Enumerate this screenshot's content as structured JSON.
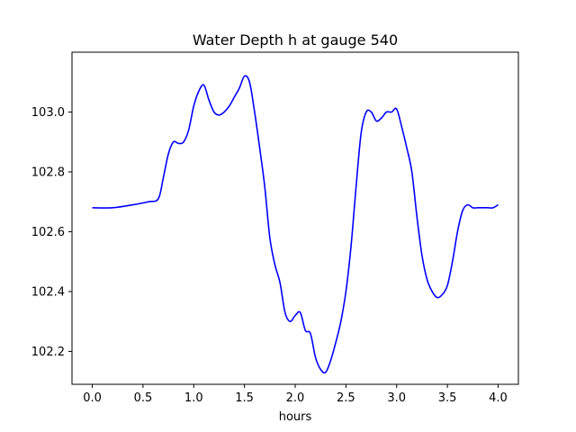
{
  "chart_data": {
    "type": "line",
    "title": "Water Depth h at gauge 540",
    "xlabel": "hours",
    "ylabel": "",
    "xlim": [
      -0.2,
      4.2
    ],
    "ylim": [
      102.09,
      103.2
    ],
    "xticks": [
      0.0,
      0.5,
      1.0,
      1.5,
      2.0,
      2.5,
      3.0,
      3.5,
      4.0
    ],
    "xtick_labels": [
      "0.0",
      "0.5",
      "1.0",
      "1.5",
      "2.0",
      "2.5",
      "3.0",
      "3.5",
      "4.0"
    ],
    "yticks": [
      102.2,
      102.4,
      102.6,
      102.8,
      103.0
    ],
    "ytick_labels": [
      "102.2",
      "102.4",
      "102.6",
      "102.8",
      "103.0"
    ],
    "grid": false,
    "legend": "none",
    "series": [
      {
        "color": "#0000ff",
        "x": [
          0.0,
          0.2,
          0.4,
          0.55,
          0.65,
          0.7,
          0.75,
          0.8,
          0.85,
          0.9,
          0.95,
          1.0,
          1.05,
          1.1,
          1.15,
          1.2,
          1.25,
          1.3,
          1.35,
          1.4,
          1.45,
          1.5,
          1.55,
          1.6,
          1.65,
          1.7,
          1.75,
          1.8,
          1.85,
          1.9,
          1.95,
          2.0,
          2.05,
          2.1,
          2.15,
          2.2,
          2.25,
          2.3,
          2.35,
          2.4,
          2.45,
          2.5,
          2.55,
          2.6,
          2.65,
          2.7,
          2.75,
          2.8,
          2.85,
          2.9,
          2.95,
          3.0,
          3.05,
          3.1,
          3.15,
          3.2,
          3.25,
          3.3,
          3.35,
          3.4,
          3.45,
          3.5,
          3.55,
          3.6,
          3.65,
          3.7,
          3.75,
          3.8,
          3.85,
          3.9,
          3.95,
          4.0
        ],
        "values": [
          102.68,
          102.68,
          102.69,
          102.7,
          102.71,
          102.78,
          102.86,
          102.9,
          102.895,
          102.9,
          102.94,
          103.02,
          103.07,
          103.09,
          103.04,
          103.0,
          102.99,
          103.0,
          103.02,
          103.05,
          103.08,
          103.12,
          103.1,
          103.0,
          102.88,
          102.75,
          102.58,
          102.49,
          102.43,
          102.33,
          102.3,
          102.32,
          102.33,
          102.27,
          102.26,
          102.18,
          102.14,
          102.13,
          102.17,
          102.23,
          102.3,
          102.4,
          102.55,
          102.75,
          102.93,
          103.0,
          103.0,
          102.97,
          102.98,
          103.0,
          103.0,
          103.01,
          102.95,
          102.88,
          102.8,
          102.65,
          102.52,
          102.44,
          102.4,
          102.38,
          102.39,
          102.42,
          102.5,
          102.6,
          102.67,
          102.69,
          102.68,
          102.68,
          102.68,
          102.68,
          102.68,
          102.69
        ]
      }
    ]
  }
}
